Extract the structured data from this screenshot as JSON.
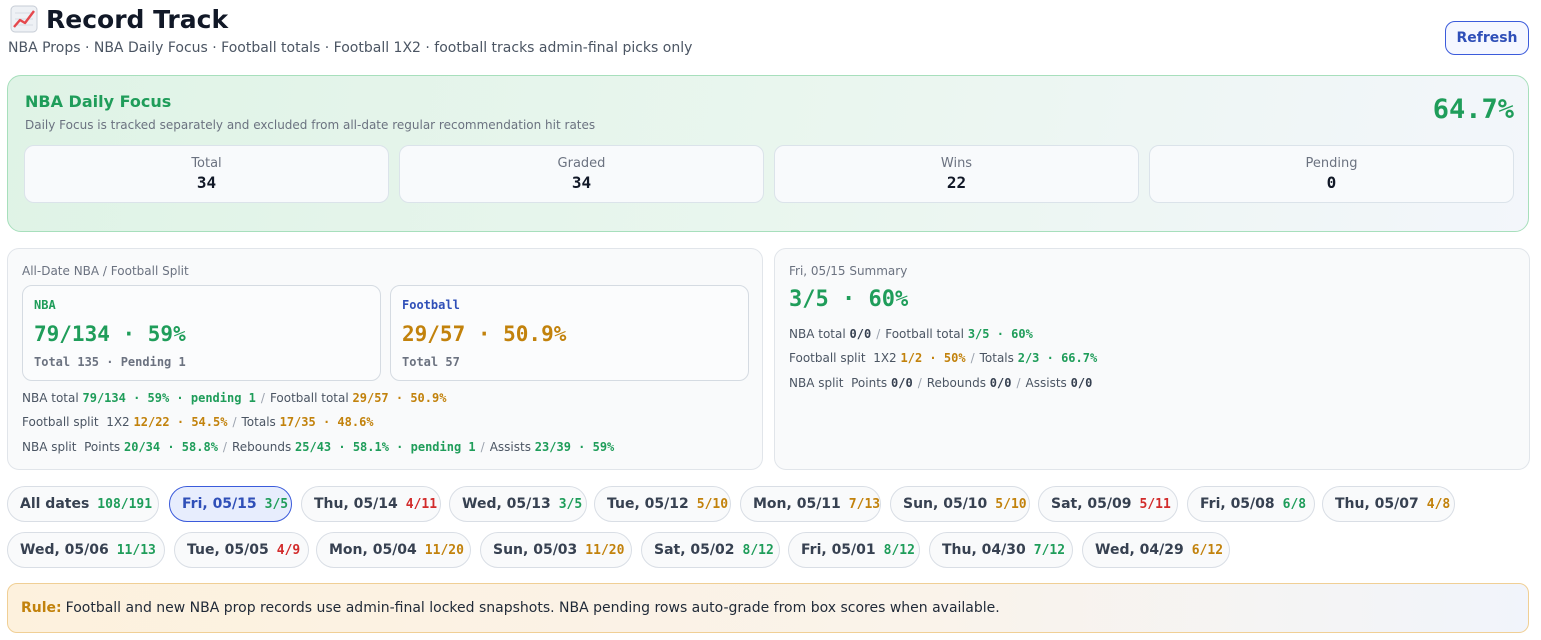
{
  "header": {
    "icon": "chart-increasing-icon",
    "title": "Record Track",
    "subtitle": "NBA Props · NBA Daily Focus · Football totals · Football 1X2 · football tracks admin-final picks only",
    "refresh_label": "Refresh"
  },
  "focus": {
    "title": "NBA Daily Focus",
    "description": "Daily Focus is tracked separately and excluded from all-date regular recommendation hit rates",
    "pct": "64.7%",
    "stats": [
      {
        "label": "Total",
        "value": "34"
      },
      {
        "label": "Graded",
        "value": "34"
      },
      {
        "label": "Wins",
        "value": "22"
      },
      {
        "label": "Pending",
        "value": "0"
      }
    ]
  },
  "split": {
    "title": "All-Date NBA / Football Split",
    "nba": {
      "label": "NBA",
      "value": "79/134 · 59%",
      "sub": "Total 135 · Pending 1"
    },
    "football": {
      "label": "Football",
      "value": "29/57 · 50.9%",
      "sub": "Total 57"
    },
    "line1": {
      "nba_label": "NBA total",
      "nba_value": "79/134 · 59% · pending 1",
      "fb_label": "Football total",
      "fb_value": "29/57 · 50.9%"
    },
    "line2": {
      "label": "Football split",
      "a_label": "1X2",
      "a_value": "12/22 · 54.5%",
      "b_label": "Totals",
      "b_value": "17/35 · 48.6%"
    },
    "line3": {
      "label": "NBA split",
      "a_label": "Points",
      "a_value": "20/34 · 58.8%",
      "b_label": "Rebounds",
      "b_value": "25/43 · 58.1% · pending 1",
      "c_label": "Assists",
      "c_value": "23/39 · 59%"
    }
  },
  "summary": {
    "title": "Fri, 05/15 Summary",
    "big": "3/5 · 60%",
    "line1": {
      "nba_label": "NBA total",
      "nba_value": "0/0",
      "fb_label": "Football total",
      "fb_value": "3/5 · 60%"
    },
    "line2": {
      "label": "Football split",
      "a_label": "1X2",
      "a_value": "1/2 · 50%",
      "b_label": "Totals",
      "b_value": "2/3 · 66.7%"
    },
    "line3": {
      "label": "NBA split",
      "a_label": "Points",
      "a_value": "0/0",
      "b_label": "Rebounds",
      "b_value": "0/0",
      "c_label": "Assists",
      "c_value": "0/0"
    }
  },
  "dates": [
    {
      "label": "All dates",
      "value": "108/191",
      "tone": "green"
    },
    {
      "label": "Fri, 05/15",
      "value": "3/5",
      "tone": "green",
      "active": true
    },
    {
      "label": "Thu, 05/14",
      "value": "4/11",
      "tone": "red"
    },
    {
      "label": "Wed, 05/13",
      "value": "3/5",
      "tone": "green"
    },
    {
      "label": "Tue, 05/12",
      "value": "5/10",
      "tone": "orange"
    },
    {
      "label": "Mon, 05/11",
      "value": "7/13",
      "tone": "orange"
    },
    {
      "label": "Sun, 05/10",
      "value": "5/10",
      "tone": "orange"
    },
    {
      "label": "Sat, 05/09",
      "value": "5/11",
      "tone": "red"
    },
    {
      "label": "Fri, 05/08",
      "value": "6/8",
      "tone": "green"
    },
    {
      "label": "Thu, 05/07",
      "value": "4/8",
      "tone": "orange"
    },
    {
      "label": "Wed, 05/06",
      "value": "11/13",
      "tone": "green"
    },
    {
      "label": "Tue, 05/05",
      "value": "4/9",
      "tone": "red"
    },
    {
      "label": "Mon, 05/04",
      "value": "11/20",
      "tone": "orange"
    },
    {
      "label": "Sun, 05/03",
      "value": "11/20",
      "tone": "orange"
    },
    {
      "label": "Sat, 05/02",
      "value": "8/12",
      "tone": "green"
    },
    {
      "label": "Fri, 05/01",
      "value": "8/12",
      "tone": "green"
    },
    {
      "label": "Thu, 04/30",
      "value": "7/12",
      "tone": "green"
    },
    {
      "label": "Wed, 04/29",
      "value": "6/12",
      "tone": "orange"
    }
  ],
  "rule": {
    "label": "Rule:",
    "text": "Football and new NBA prop records use admin-final locked snapshots. NBA pending rows auto-grade from box scores when available."
  },
  "colors": {
    "green": "#1f9d5a",
    "orange": "#c2820c",
    "red": "#d22b2b",
    "blue": "#2f4fb8"
  }
}
